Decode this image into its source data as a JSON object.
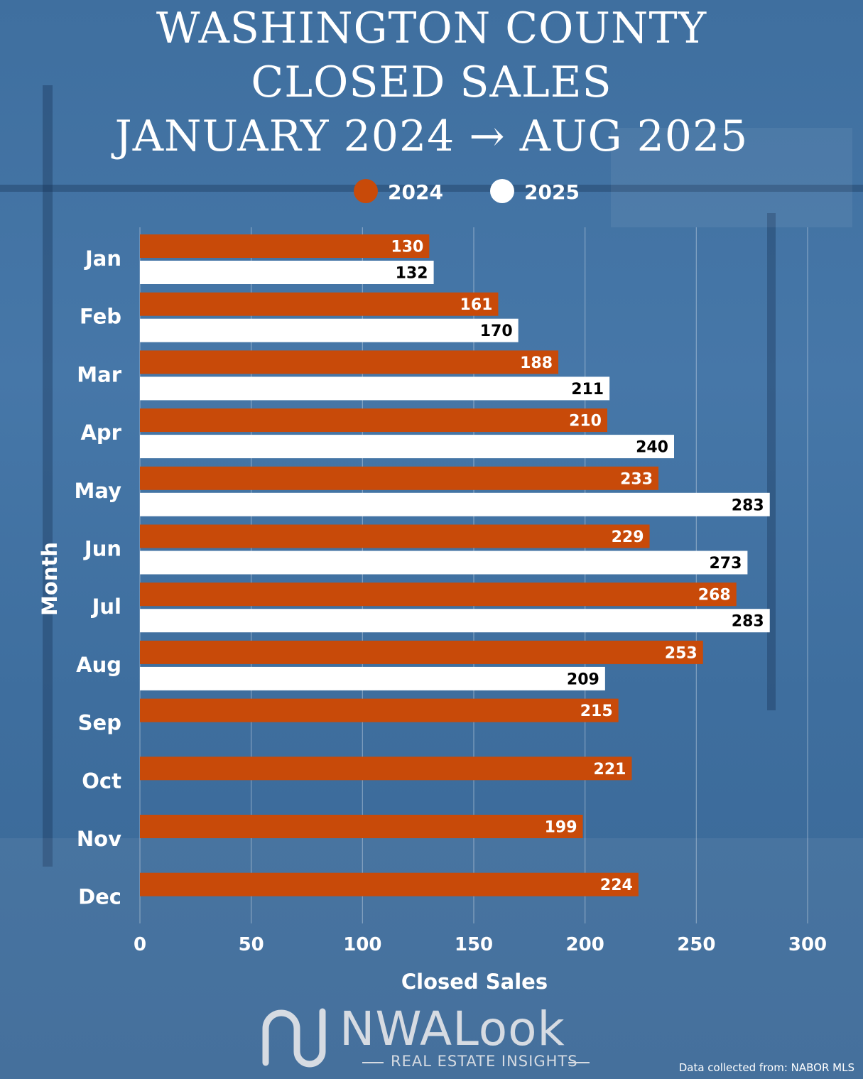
{
  "title_lines": [
    "WASHINGTON COUNTY",
    "CLOSED SALES",
    "JANUARY 2024 → AUG 2025"
  ],
  "colors": {
    "series_2024": "#c84a09",
    "series_2025": "#ffffff",
    "label_2024": "#ffffff",
    "label_2025": "#000000",
    "axis_text": "#ffffff"
  },
  "chart_data": {
    "type": "bar",
    "orientation": "horizontal",
    "title": "WASHINGTON COUNTY CLOSED SALES JANUARY 2024 → AUG 2025",
    "categories": [
      "Jan",
      "Feb",
      "Mar",
      "Apr",
      "May",
      "Jun",
      "Jul",
      "Aug",
      "Sep",
      "Oct",
      "Nov",
      "Dec"
    ],
    "series": [
      {
        "name": "2024",
        "values": [
          130,
          161,
          188,
          210,
          233,
          229,
          268,
          253,
          215,
          221,
          199,
          224
        ]
      },
      {
        "name": "2025",
        "values": [
          132,
          170,
          211,
          240,
          283,
          273,
          283,
          209,
          null,
          null,
          null,
          null
        ]
      }
    ],
    "xlabel": "Closed Sales",
    "ylabel": "Month",
    "xlim": [
      0,
      300
    ],
    "xticks": [
      0,
      50,
      100,
      150,
      200,
      250,
      300
    ],
    "grid": true,
    "legend": "top-center"
  },
  "branding": {
    "logo_text": "NWALook",
    "tagline": "REAL ESTATE INSIGHTS"
  },
  "source_note": "Data collected from: NABOR MLS"
}
